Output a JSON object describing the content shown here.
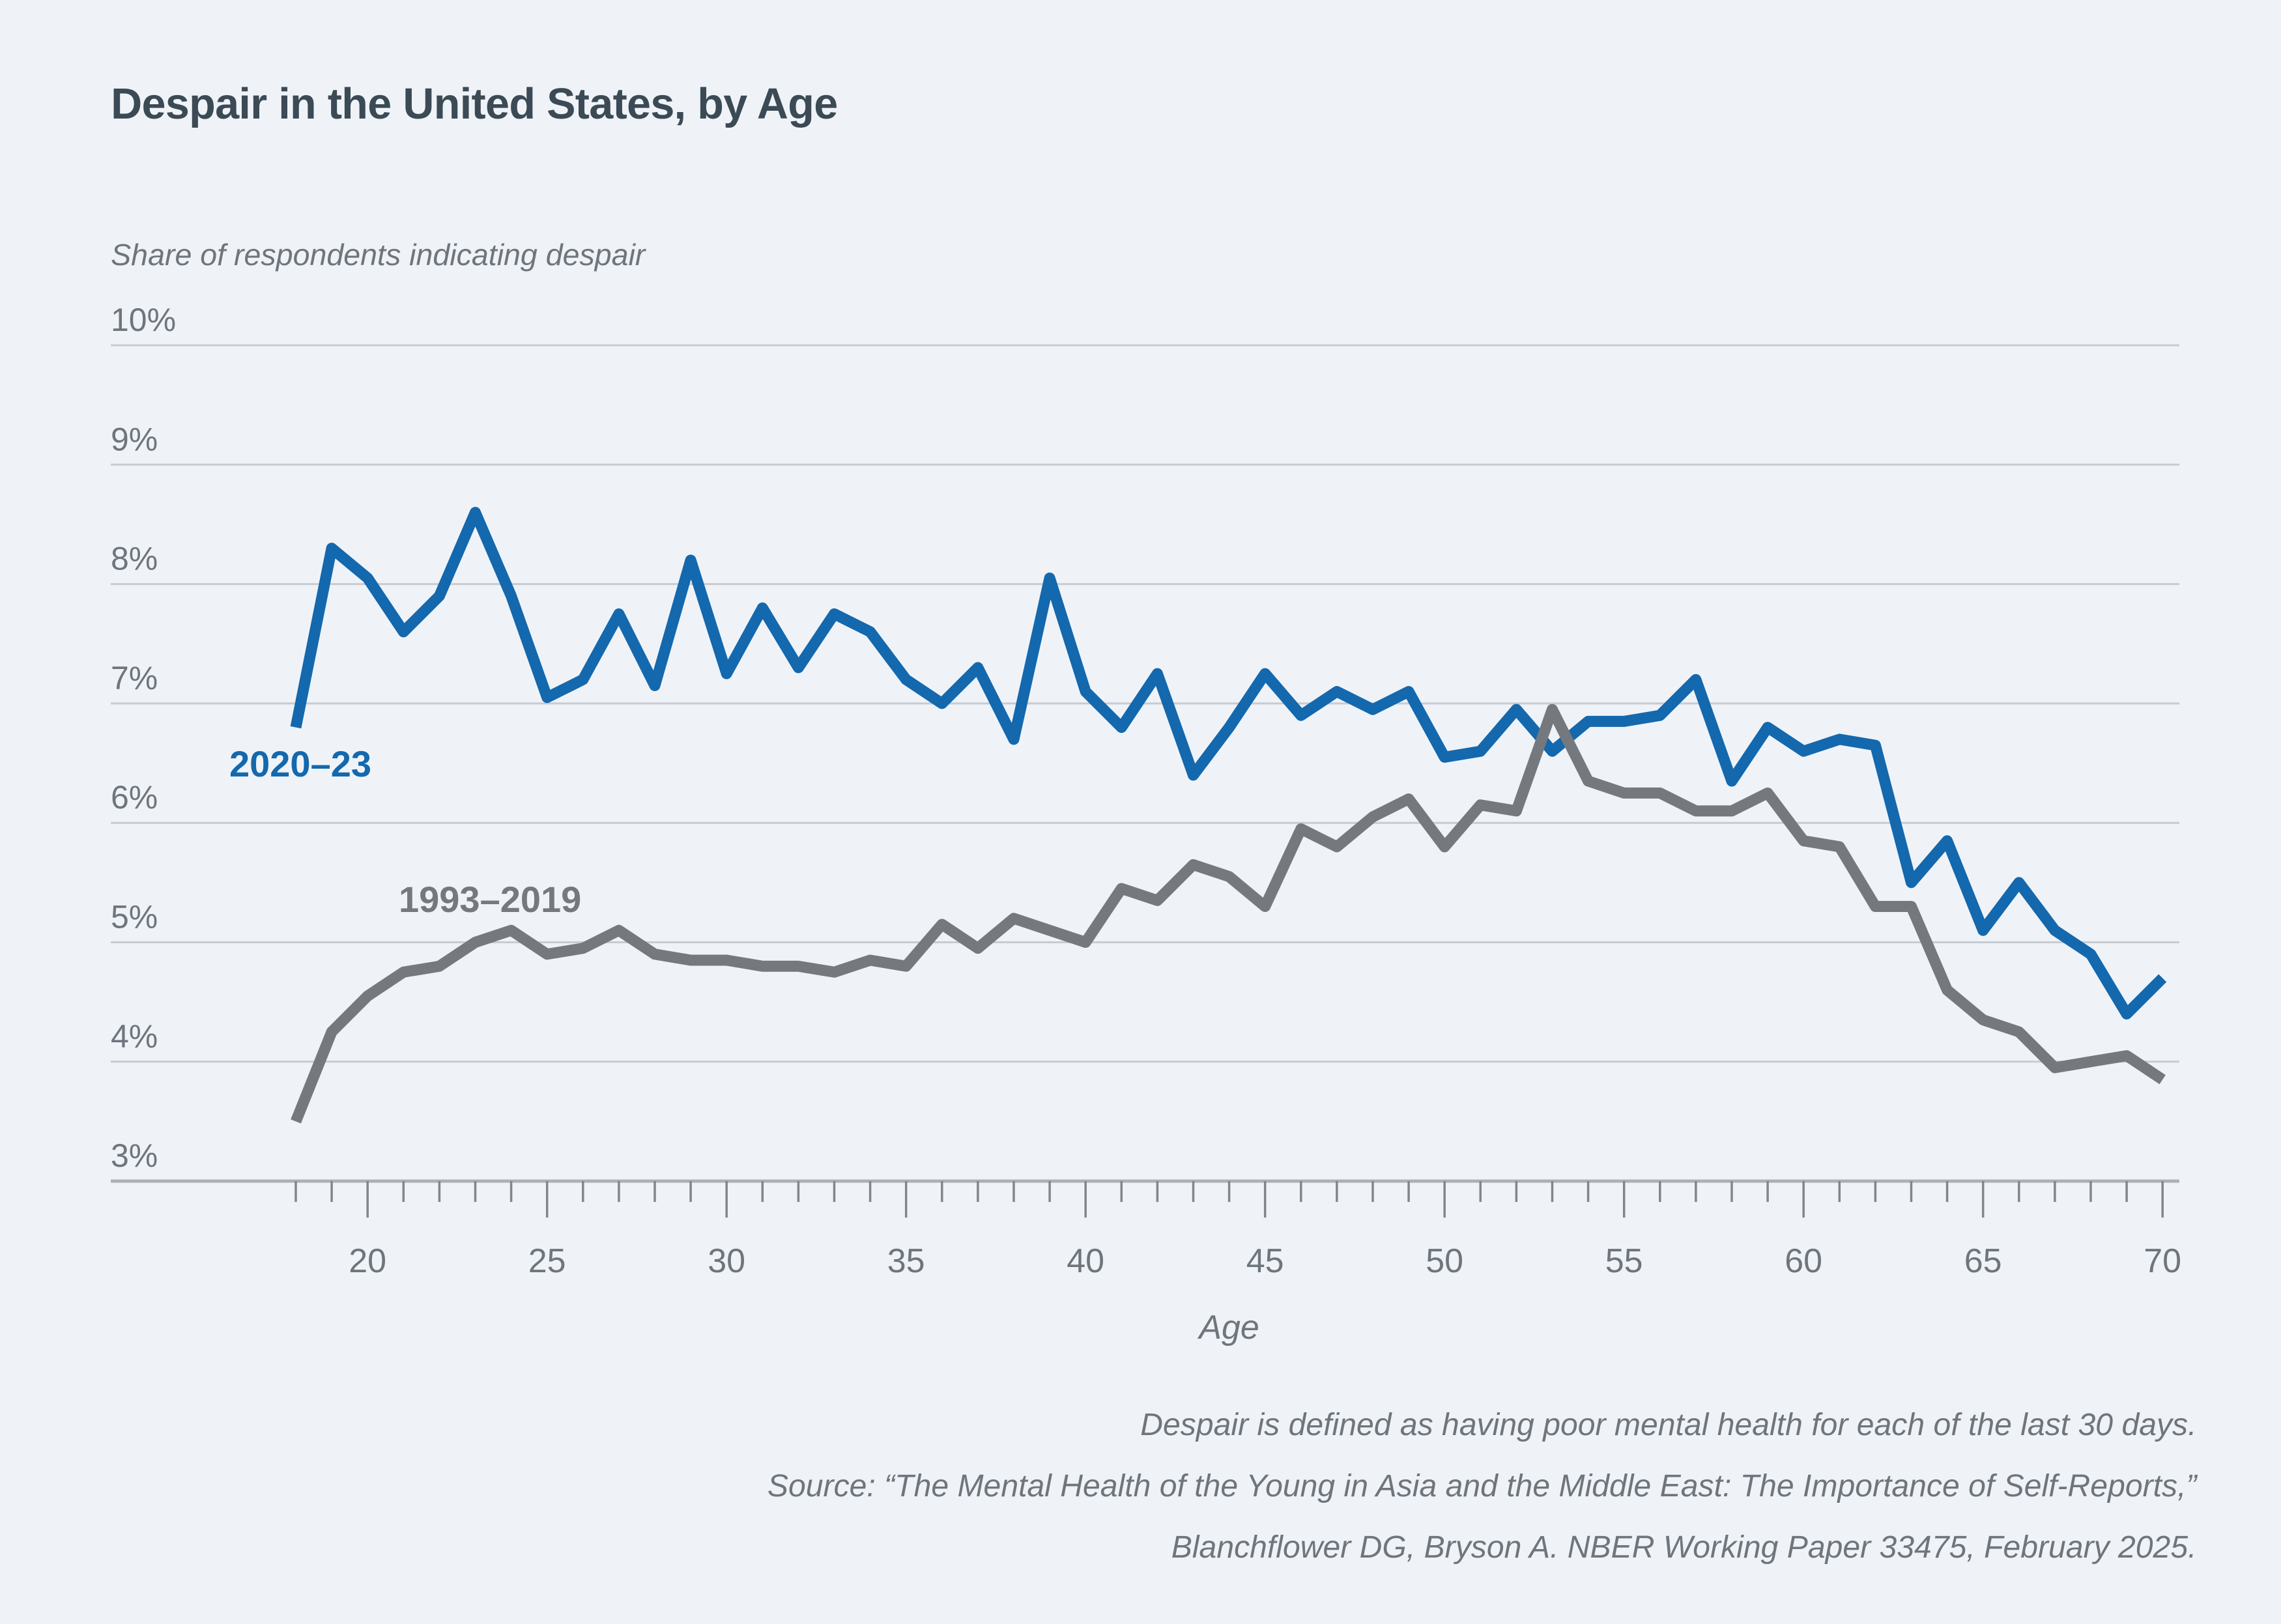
{
  "page": {
    "background": "#eff3f8"
  },
  "header": {
    "title": "Despair in the United States, by Age",
    "subtitle": "Share of respondents indicating despair"
  },
  "chart_data": {
    "type": "line",
    "title": "Despair in the United States, by Age",
    "subtitle": "Share of respondents indicating despair",
    "xlabel": "Age",
    "ylabel": "",
    "xlim": [
      18,
      70
    ],
    "ylim": [
      3,
      10
    ],
    "grid": "horizontal",
    "y_ticks": [
      10,
      9,
      8,
      7,
      6,
      5,
      4,
      3
    ],
    "y_tick_suffix": "%",
    "x_major_ticks": [
      20,
      25,
      30,
      35,
      40,
      45,
      50,
      55,
      60,
      65,
      70
    ],
    "x": [
      18,
      19,
      20,
      21,
      22,
      23,
      24,
      25,
      26,
      27,
      28,
      29,
      30,
      31,
      32,
      33,
      34,
      35,
      36,
      37,
      38,
      39,
      40,
      41,
      42,
      43,
      44,
      45,
      46,
      47,
      48,
      49,
      50,
      51,
      52,
      53,
      54,
      55,
      56,
      57,
      58,
      59,
      60,
      61,
      62,
      63,
      64,
      65,
      66,
      67,
      68,
      69,
      70
    ],
    "series": [
      {
        "name": "2020–23",
        "color": "#1468ad",
        "values": [
          6.8,
          8.3,
          8.05,
          7.6,
          7.9,
          8.6,
          7.9,
          7.05,
          7.2,
          7.75,
          7.15,
          8.2,
          7.25,
          7.8,
          7.3,
          7.75,
          7.6,
          7.2,
          7.0,
          7.3,
          6.7,
          8.05,
          7.1,
          6.8,
          7.25,
          6.4,
          6.8,
          7.25,
          6.9,
          7.1,
          6.95,
          7.1,
          6.55,
          6.6,
          6.95,
          6.6,
          6.85,
          6.85,
          6.9,
          7.2,
          6.35,
          6.8,
          6.6,
          6.7,
          6.65,
          5.5,
          5.85,
          5.1,
          5.5,
          5.1,
          4.9,
          4.4,
          4.7
        ]
      },
      {
        "name": "1993–2019",
        "color": "#75797e",
        "values": [
          3.5,
          4.25,
          4.55,
          4.75,
          4.8,
          5.0,
          5.1,
          4.9,
          4.95,
          5.1,
          4.9,
          4.85,
          4.85,
          4.8,
          4.8,
          4.75,
          4.85,
          4.8,
          5.15,
          4.95,
          5.2,
          5.1,
          5.0,
          5.45,
          5.35,
          5.65,
          5.55,
          5.3,
          5.95,
          5.8,
          6.05,
          6.2,
          5.8,
          6.15,
          6.1,
          6.95,
          6.35,
          6.25,
          6.25,
          6.1,
          6.1,
          6.25,
          5.85,
          5.8,
          5.3,
          5.3,
          4.6,
          4.35,
          4.25,
          3.95,
          4.0,
          4.05,
          3.85
        ]
      }
    ],
    "legend_position": "inline-labels",
    "colors": {
      "background": "#eff3f8",
      "gridline": "#c7ccd2",
      "axis_line": "#aab1b8",
      "tick": "#7f868d",
      "axis_text": "#6e757c",
      "title_text": "#3b4a55",
      "blue_series": "#1468ad",
      "gray_series": "#75797e"
    }
  },
  "footer": {
    "line1": "Despair is defined as having poor mental health for each of the last 30 days.",
    "line2": "Source: “The Mental Health of the Young in Asia and the Middle East: The Importance of Self-Reports,”",
    "line3": "Blanchflower DG, Bryson A. NBER Working Paper 33475, February 2025."
  }
}
